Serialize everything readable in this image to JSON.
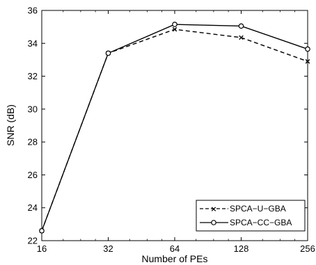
{
  "chart_data": {
    "type": "line",
    "xlabel": "Number of PEs",
    "ylabel": "SNR (dB)",
    "x_scale": "log2",
    "categories": [
      "16",
      "32",
      "64",
      "128",
      "256"
    ],
    "x": [
      16,
      32,
      64,
      128,
      256
    ],
    "xlim": [
      16,
      256
    ],
    "ylim": [
      22,
      36
    ],
    "yticks": [
      "22",
      "24",
      "26",
      "28",
      "30",
      "32",
      "34",
      "36"
    ],
    "grid": false,
    "legend_position": "bottom-right",
    "series": [
      {
        "name": "SPCA−U−GBA",
        "style": "dashed",
        "marker": "x",
        "values": [
          22.6,
          33.4,
          34.85,
          34.35,
          32.9
        ]
      },
      {
        "name": "SPCA−CC−GBA",
        "style": "solid",
        "marker": "circle",
        "values": [
          22.6,
          33.4,
          35.15,
          35.05,
          33.65
        ]
      }
    ]
  }
}
